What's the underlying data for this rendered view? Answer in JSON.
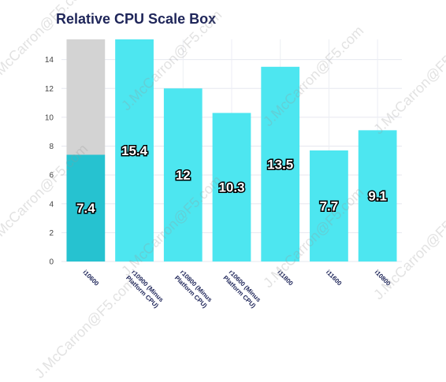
{
  "chart_data": {
    "type": "bar",
    "title": "Relative CPU Scale Box",
    "categories": [
      "i10600",
      "r10900 (Minus Platform CPU)",
      "r10800 (Minus Platform CPU)",
      "r10600 (Minus Platform CPU)",
      "i11800",
      "i11600",
      "i10800"
    ],
    "values": [
      7.4,
      15.4,
      12,
      10.3,
      13.5,
      7.7,
      9.1
    ],
    "data_labels": [
      "7.4",
      "15.4",
      "12",
      "10.3",
      "13.5",
      "7.7",
      "9.1"
    ],
    "stacked_extra": [
      8.0,
      0,
      0,
      0,
      0,
      0,
      0
    ],
    "ylim": [
      0,
      15.4
    ],
    "yticks": [
      0,
      2,
      4,
      6,
      8,
      10,
      12,
      14
    ],
    "grid": true,
    "xlabel": "",
    "ylabel": "",
    "colors": {
      "primary": "#4de6f0",
      "first_bar": "#26c2d0",
      "extra": "#d3d3d3",
      "title": "#1e2559"
    }
  },
  "watermark": "J.McCarron@F5.com"
}
